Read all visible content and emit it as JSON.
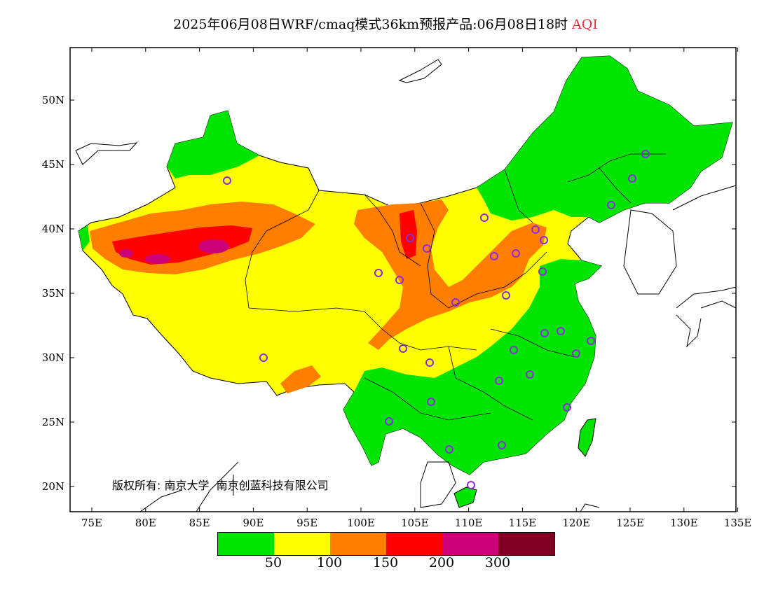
{
  "title": {
    "main": "2025年06月08日WRF/cmaq模式36km预报产品:06月08日18时",
    "variable": "AQI"
  },
  "map": {
    "x_ticks": [
      "75E",
      "80E",
      "85E",
      "90E",
      "95E",
      "100E",
      "105E",
      "110E",
      "115E",
      "120E",
      "125E",
      "130E",
      "135E"
    ],
    "y_ticks": [
      "50N",
      "45N",
      "40N",
      "35N",
      "30N",
      "25N",
      "20N"
    ],
    "copyright": "版权所有: 南京大学",
    "company": "南京创蓝科技有限公司",
    "colors": {
      "ocean": "#ffffff",
      "outside": "#ffffff",
      "borders": "#000000",
      "station_marker": "#8a2be2"
    }
  },
  "legend": {
    "colors": [
      "#00e400",
      "#ffff00",
      "#ff7e00",
      "#ff0000",
      "#cc0077",
      "#7e0023"
    ],
    "labels": [
      "50",
      "100",
      "150",
      "200",
      "300"
    ]
  }
}
